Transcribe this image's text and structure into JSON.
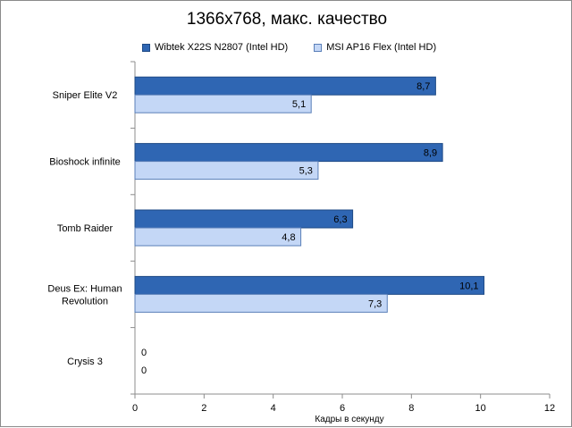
{
  "chart_data": {
    "type": "bar",
    "orientation": "horizontal",
    "title": "1366x768, макс. качество",
    "xlabel": "Кадры в секунду",
    "ylabel": "",
    "xlim": [
      0,
      12
    ],
    "xticks": [
      "0",
      "2",
      "4",
      "6",
      "8",
      "10",
      "12"
    ],
    "grid": false,
    "legend_position": "top",
    "categories": [
      "Sniper Elite V2",
      "Bioshock infinite",
      "Tomb Raider",
      "Deus Ex: Human Revolution",
      "Crysis 3"
    ],
    "category_lines": [
      [
        "Sniper Elite V2"
      ],
      [
        "Bioshock infinite"
      ],
      [
        "Tomb Raider"
      ],
      [
        "Deus Ex: Human",
        "Revolution"
      ],
      [
        "Crysis 3"
      ]
    ],
    "series": [
      {
        "name": "Wibtek X22S N2807 (Intel HD)",
        "values": [
          8.7,
          8.9,
          6.3,
          10.1,
          0
        ],
        "labels": [
          "8,7",
          "8,9",
          "6,3",
          "10,1",
          "0"
        ],
        "color": "#2f66b3"
      },
      {
        "name": "MSI AP16 Flex (Intel HD)",
        "values": [
          5.1,
          5.3,
          4.8,
          7.3,
          0
        ],
        "labels": [
          "5,1",
          "5,3",
          "4,8",
          "7,3",
          "0"
        ],
        "color": "#c4d7f6"
      }
    ]
  }
}
